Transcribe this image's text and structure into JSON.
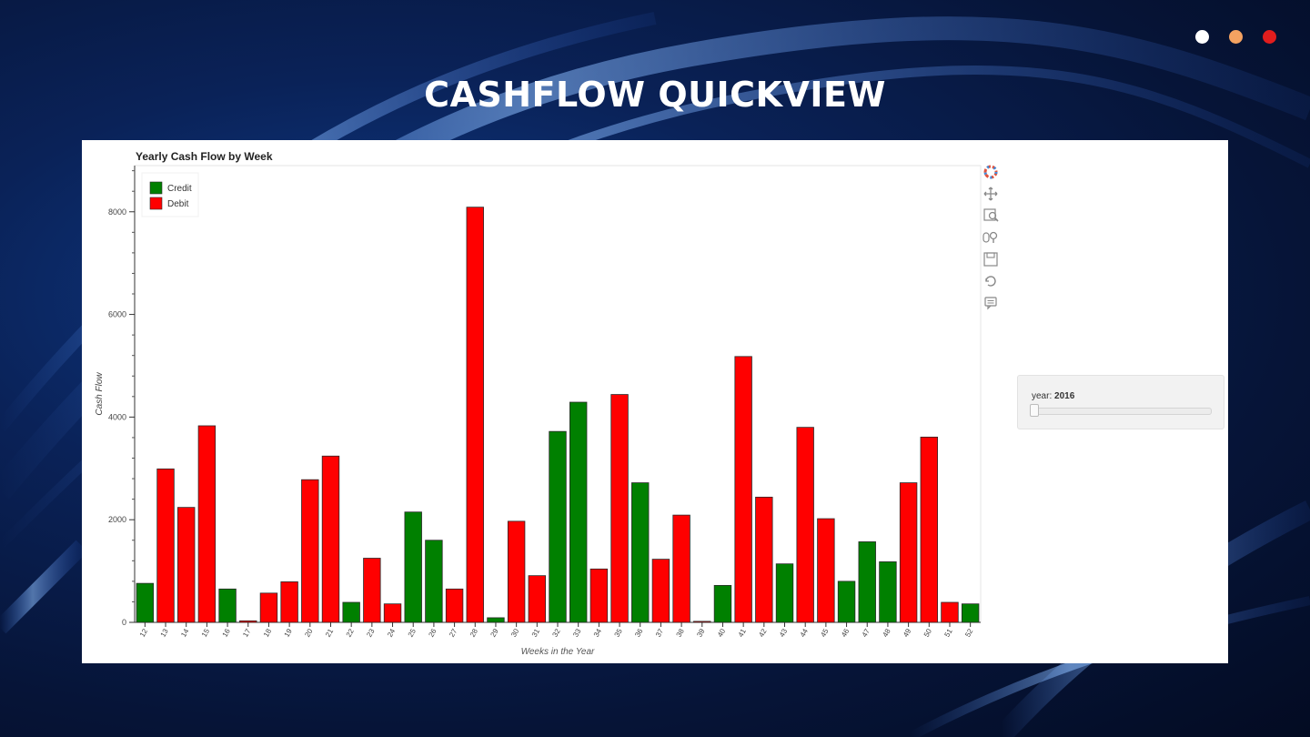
{
  "page": {
    "heading": "CASHFLOW QUICKVIEW",
    "window_dots": [
      {
        "name": "white-dot",
        "color": "#ffffff"
      },
      {
        "name": "orange-dot",
        "color": "#f4a261"
      },
      {
        "name": "red-dot",
        "color": "#e11d1d"
      }
    ]
  },
  "toolbar": {
    "tools": [
      "bokeh-logo-icon",
      "pan-icon",
      "box-zoom-icon",
      "wheel-zoom-icon",
      "save-icon",
      "reset-icon",
      "hover-icon"
    ]
  },
  "slider": {
    "label": "year: ",
    "value": "2016",
    "position_fraction": 0.0
  },
  "chart_data": {
    "type": "bar",
    "title": "Yearly Cash Flow by Week",
    "xlabel": "Weeks in the Year",
    "ylabel": "Cash Flow",
    "ylim": [
      0,
      8900
    ],
    "yticks": [
      "0",
      "2000",
      "4000",
      "6000",
      "8000"
    ],
    "ytick_values": [
      0,
      2000,
      4000,
      6000,
      8000
    ],
    "legend": [
      {
        "label": "Credit",
        "color": "#008000"
      },
      {
        "label": "Debit",
        "color": "#ff0000"
      }
    ],
    "legend_position": "top-left",
    "colors": {
      "Credit": "#008000",
      "Debit": "#ff0000"
    },
    "categories": [
      "12",
      "13",
      "14",
      "15",
      "16",
      "17",
      "18",
      "19",
      "20",
      "21",
      "22",
      "23",
      "24",
      "25",
      "26",
      "27",
      "28",
      "29",
      "30",
      "31",
      "32",
      "33",
      "34",
      "35",
      "36",
      "37",
      "38",
      "39",
      "40",
      "41",
      "42",
      "43",
      "44",
      "45",
      "46",
      "47",
      "48",
      "49",
      "50",
      "51",
      "52"
    ],
    "values": [
      760,
      2990,
      2240,
      3830,
      650,
      30,
      570,
      790,
      2780,
      3240,
      390,
      1250,
      360,
      2150,
      1600,
      650,
      8090,
      90,
      1970,
      910,
      3720,
      4290,
      1040,
      4440,
      2720,
      1230,
      2090,
      20,
      720,
      5180,
      2440,
      1140,
      3800,
      2020,
      800,
      1570,
      1180,
      2720,
      3610,
      390,
      360
    ],
    "types": [
      "Credit",
      "Debit",
      "Debit",
      "Debit",
      "Credit",
      "Debit",
      "Debit",
      "Debit",
      "Debit",
      "Debit",
      "Credit",
      "Debit",
      "Debit",
      "Credit",
      "Credit",
      "Debit",
      "Debit",
      "Credit",
      "Debit",
      "Debit",
      "Credit",
      "Credit",
      "Debit",
      "Debit",
      "Credit",
      "Debit",
      "Debit",
      "Debit",
      "Credit",
      "Debit",
      "Debit",
      "Credit",
      "Debit",
      "Debit",
      "Credit",
      "Credit",
      "Credit",
      "Debit",
      "Debit",
      "Debit",
      "Credit"
    ]
  }
}
